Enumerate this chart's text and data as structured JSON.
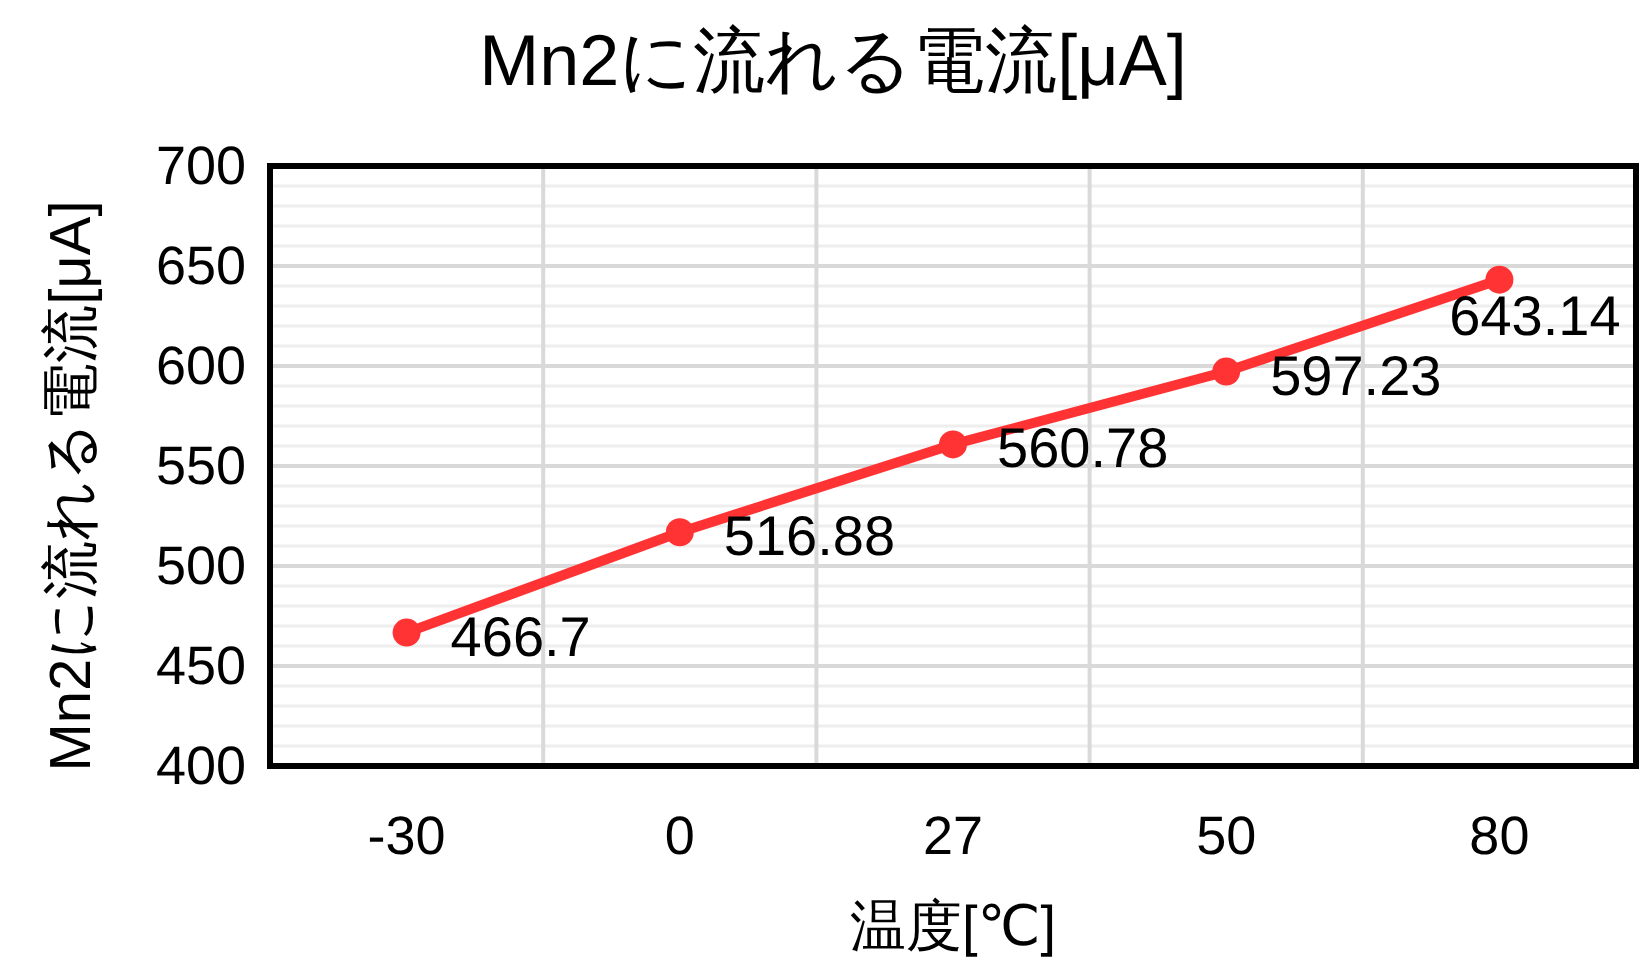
{
  "chart_data": {
    "type": "line",
    "title": "Mn2に流れる電流[μA]",
    "xlabel": "温度[℃]",
    "ylabel": "Mn2に流れる電流[μA]",
    "categories": [
      "-30",
      "0",
      "27",
      "50",
      "80"
    ],
    "series": [
      {
        "color": "#ff3333",
        "values": [
          466.7,
          516.88,
          560.78,
          597.23,
          643.14
        ]
      }
    ],
    "ylim": [
      400,
      700
    ],
    "yticks": [
      400,
      {
        "value": 410,
        "label": null
      },
      {
        "value": 420,
        "label": null
      },
      {
        "value": 430,
        "label": null
      },
      {
        "value": 440,
        "label": null
      },
      450,
      {
        "value": 460,
        "label": null
      },
      {
        "value": 470,
        "label": null
      },
      {
        "value": 480,
        "label": null
      },
      {
        "value": 490,
        "label": null
      },
      500,
      {
        "value": 510,
        "label": null
      },
      {
        "value": 520,
        "label": null
      },
      {
        "value": 530,
        "label": null
      },
      {
        "value": 540,
        "label": null
      },
      550,
      {
        "value": 560,
        "label": null
      },
      {
        "value": 570,
        "label": null
      },
      {
        "value": 580,
        "label": null
      },
      {
        "value": 590,
        "label": null
      },
      600,
      {
        "value": 610,
        "label": null
      },
      {
        "value": 620,
        "label": null
      },
      {
        "value": 630,
        "label": null
      },
      {
        "value": 640,
        "label": null
      },
      650,
      {
        "value": 660,
        "label": null
      },
      {
        "value": 670,
        "label": null
      },
      {
        "value": 680,
        "label": null
      },
      {
        "value": 690,
        "label": null
      },
      700
    ],
    "grid": true,
    "marker": "circle",
    "line_style": "solid",
    "data_labels": true
  }
}
